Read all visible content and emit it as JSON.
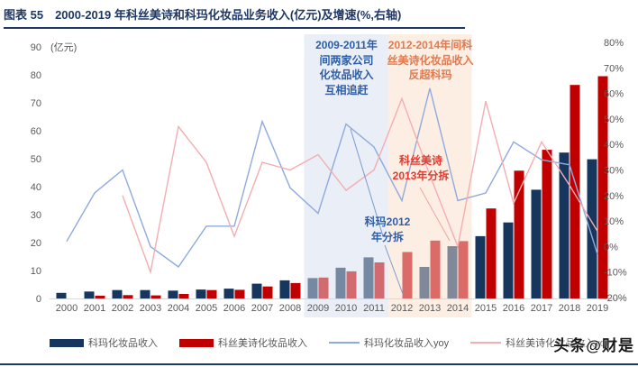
{
  "title": {
    "label": "图表 55",
    "text": "2000-2019 年科丝美诗和科玛化妆品业务收入(亿元)及增速(%,右轴)"
  },
  "watermark": "头条@财是",
  "chart_data": {
    "type": "bar+line",
    "categories": [
      2000,
      2001,
      2002,
      2003,
      2004,
      2005,
      2006,
      2007,
      2008,
      2009,
      2010,
      2011,
      2012,
      2013,
      2014,
      2015,
      2016,
      2017,
      2018,
      2019
    ],
    "left_axis": {
      "unit": "(亿元)",
      "min": 0,
      "max": 90,
      "step": 10
    },
    "right_axis": {
      "min": -20,
      "max": 80,
      "step": 10,
      "format": "percent"
    },
    "series": [
      {
        "name": "科玛化妆品收入",
        "type": "bar",
        "axis": "left",
        "color": "#17365d",
        "values": [
          2,
          2.5,
          3,
          3,
          2.8,
          3.2,
          3.5,
          5.3,
          6.5,
          7.3,
          11,
          14.7,
          null,
          11.3,
          18.7,
          22.3,
          27.2,
          38.9,
          52.2,
          49.8
        ]
      },
      {
        "name": "科丝美诗化妆品收入",
        "type": "bar",
        "axis": "left",
        "color": "#c00000",
        "values": [
          null,
          1,
          1.2,
          1.1,
          1.6,
          3,
          3.1,
          4.3,
          5.5,
          7.5,
          9.7,
          12.9,
          16.6,
          20.7,
          20.5,
          32.2,
          45.7,
          53.2,
          76.4,
          79.5
        ]
      },
      {
        "name": "科玛化妆品收入yoy",
        "type": "line",
        "axis": "right",
        "color": "#8faadc",
        "values": [
          2,
          21,
          30,
          0,
          -8,
          8,
          8,
          49,
          23,
          13,
          48,
          39,
          18,
          62,
          18,
          21,
          41,
          34,
          32,
          -3
        ]
      },
      {
        "name": "科丝美诗化妆品收入yoy",
        "type": "line",
        "axis": "right",
        "color": "#f4adb1",
        "values": [
          null,
          null,
          20,
          -10,
          47,
          33,
          4,
          33,
          30,
          36,
          22,
          30,
          58,
          28,
          0,
          57,
          17,
          41,
          24,
          6
        ]
      }
    ],
    "highlight_regions": [
      {
        "from": 2009,
        "to": 2011,
        "color": "#e9eef7",
        "text_color": "#2e5ea6",
        "lines": [
          "2009-2011年",
          "间两家公司",
          "化妆品收入",
          "互相追赶"
        ]
      },
      {
        "from": 2012,
        "to": 2014,
        "color": "#fdeee4",
        "text_color": "#e07a50",
        "lines": [
          "2012-2014年间科",
          "丝美诗化妆品收入",
          "反超科玛"
        ]
      }
    ],
    "annotations": [
      {
        "id": "cosmax-split",
        "color": "#e4392f",
        "lines": [
          "科丝美诗",
          "2013年分拆"
        ]
      },
      {
        "id": "korma-split",
        "color": "#2e5ea6",
        "lines": [
          "科玛2012",
          "年分拆"
        ]
      }
    ]
  },
  "legend": {
    "items": [
      {
        "label": "科玛化妆品收入",
        "type": "bar",
        "color": "#17365d"
      },
      {
        "label": "科丝美诗化妆品收入",
        "type": "bar",
        "color": "#c00000"
      },
      {
        "label": "科玛化妆品收入yoy",
        "type": "line",
        "color": "#8faadc"
      },
      {
        "label": "科丝美诗化妆品收入yoy",
        "type": "line",
        "color": "#f4adb1"
      }
    ]
  }
}
